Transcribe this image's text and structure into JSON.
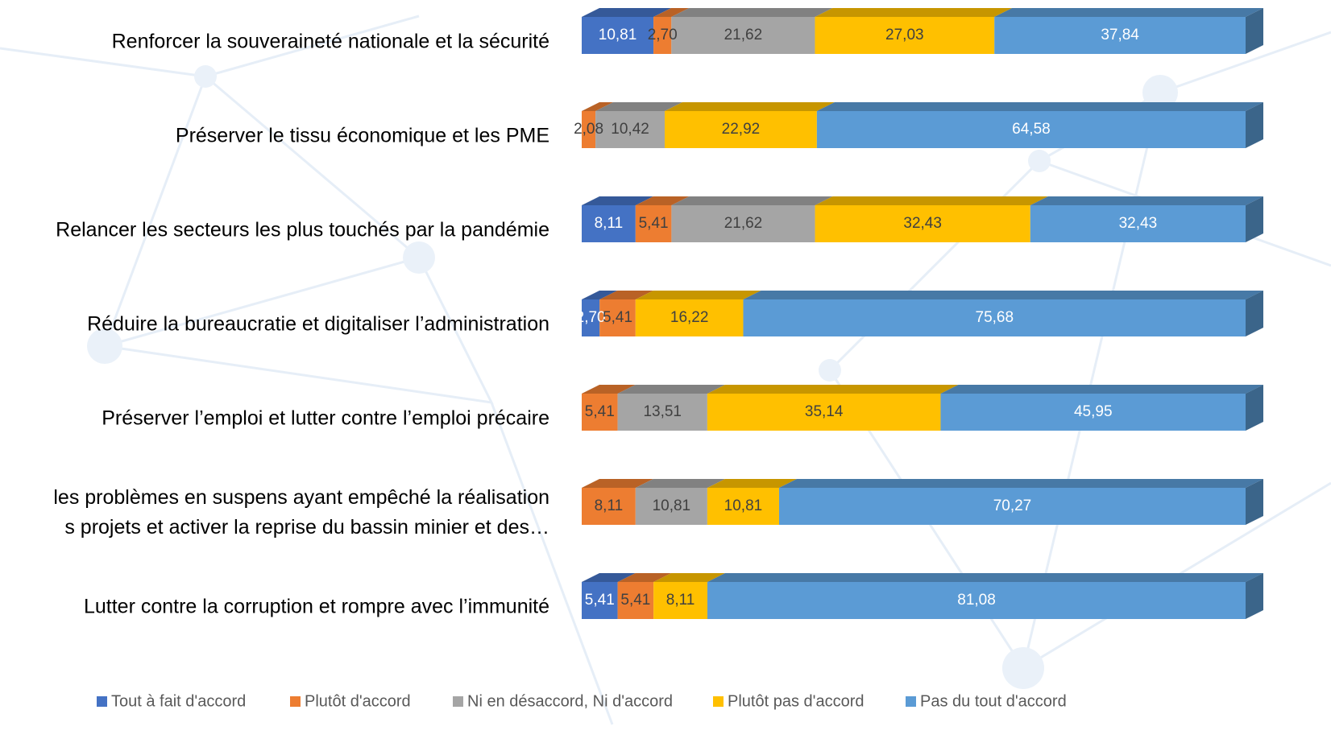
{
  "chart_data": {
    "type": "stacked_barh",
    "categories": [
      "Renforcer la souveraineté nationale et la sécurité",
      "Préserver le tissu économique et les PME",
      "Relancer les secteurs les plus touchés par la pandémie",
      "Réduire la bureaucratie et digitaliser l’administration",
      "Préserver l’emploi et lutter contre l’emploi précaire",
      "les problèmes en suspens ayant empêché la réalisation\ns projets et activer la reprise du bassin minier et des…",
      "Lutter contre la corruption et rompre avec l’immunité"
    ],
    "xlim": [
      0,
      100
    ],
    "series": [
      {
        "name": "Tout à fait d'accord",
        "color": "#4472c4",
        "label_color": "#ffffff",
        "values": [
          10.81,
          null,
          8.11,
          2.7,
          null,
          null,
          5.41
        ],
        "value_labels": [
          "10,81",
          null,
          "8,11",
          "2,70",
          null,
          null,
          "5,41"
        ]
      },
      {
        "name": "Plutôt d'accord",
        "color": "#ed7d31",
        "label_color": "#404040",
        "values": [
          2.7,
          2.08,
          5.41,
          5.41,
          5.41,
          8.11,
          5.41
        ],
        "value_labels": [
          "2,70",
          "2,08",
          "5,41",
          "5,41",
          "5,41",
          "8,11",
          "5,41"
        ]
      },
      {
        "name": "Ni en désaccord, Ni d'accord",
        "color": "#a5a5a5",
        "label_color": "#404040",
        "values": [
          21.62,
          10.42,
          21.62,
          null,
          13.51,
          10.81,
          null
        ],
        "value_labels": [
          "21,62",
          "10,42",
          "21,62",
          null,
          "13,51",
          "10,81",
          null
        ]
      },
      {
        "name": "Plutôt pas d'accord",
        "color": "#ffc000",
        "label_color": "#404040",
        "values": [
          27.03,
          22.92,
          32.43,
          16.22,
          35.14,
          10.81,
          8.11
        ],
        "value_labels": [
          "27,03",
          "22,92",
          "32,43",
          "16,22",
          "35,14",
          "10,81",
          "8,11"
        ]
      },
      {
        "name": "Pas du tout d'accord",
        "color": "#5b9bd5",
        "label_color": "#ffffff",
        "values": [
          37.84,
          64.58,
          32.43,
          75.68,
          45.95,
          70.27,
          81.08
        ],
        "value_labels": [
          "37,84",
          "64,58",
          "32,43",
          "75,68",
          "45,95",
          "70,27",
          "81,08"
        ]
      }
    ],
    "legend": "bottom"
  }
}
